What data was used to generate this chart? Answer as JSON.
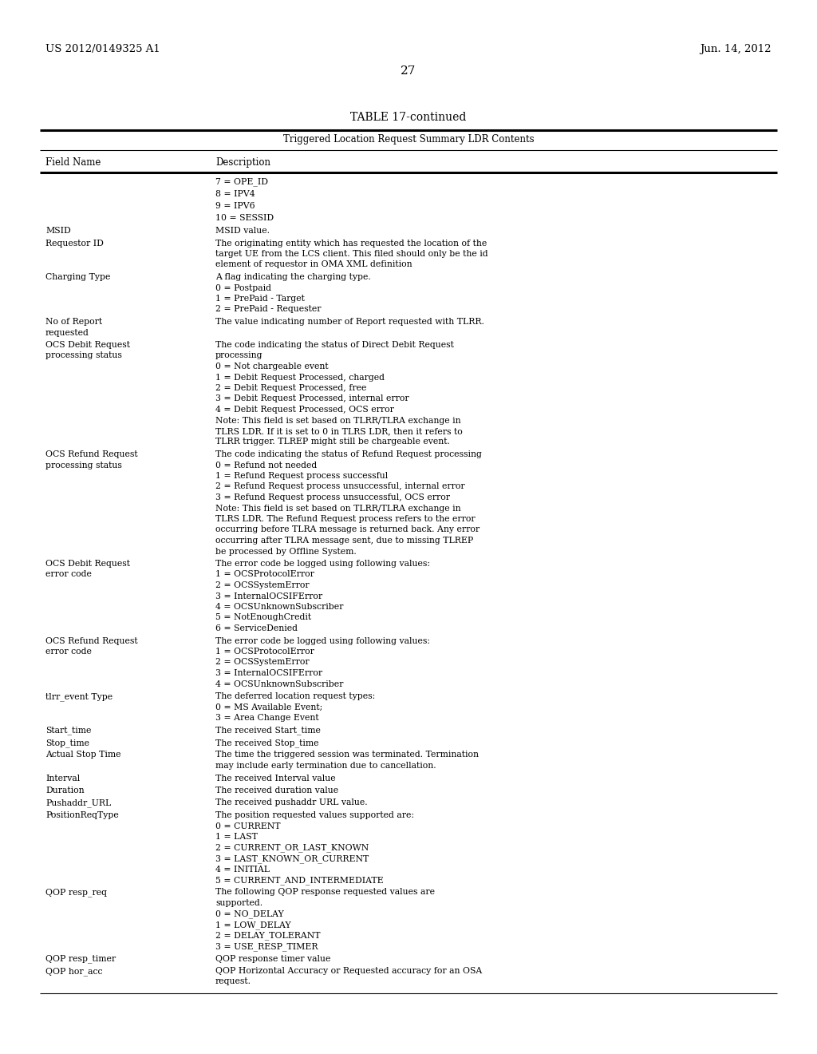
{
  "header_left": "US 2012/0149325 A1",
  "header_right": "Jun. 14, 2012",
  "page_number": "27",
  "table_title": "TABLE 17-continued",
  "table_subtitle": "Triggered Location Request Summary LDR Contents",
  "col1_header": "Field Name",
  "col2_header": "Description",
  "background_color": "#ffffff",
  "text_color": "#000000",
  "rows": [
    {
      "field": "",
      "description": "7 = OPE_ID"
    },
    {
      "field": "",
      "description": "8 = IPV4"
    },
    {
      "field": "",
      "description": "9 = IPV6"
    },
    {
      "field": "",
      "description": "10 = SESSID"
    },
    {
      "field": "MSID",
      "description": "MSID value."
    },
    {
      "field": "Requestor ID",
      "description": "The originating entity which has requested the location of the\ntarget UE from the LCS client. This filed should only be the id\nelement of requestor in OMA XML definition"
    },
    {
      "field": "Charging Type",
      "description": "A flag indicating the charging type.\n0 = Postpaid\n1 = PrePaid - Target\n2 = PrePaid - Requester"
    },
    {
      "field": "No of Report\nrequested",
      "description": "The value indicating number of Report requested with TLRR."
    },
    {
      "field": "OCS Debit Request\nprocessing status",
      "description": "The code indicating the status of Direct Debit Request\nprocessing\n0 = Not chargeable event\n1 = Debit Request Processed, charged\n2 = Debit Request Processed, free\n3 = Debit Request Processed, internal error\n4 = Debit Request Processed, OCS error\nNote: This field is set based on TLRR/TLRA exchange in\nTLRS LDR. If it is set to 0 in TLRS LDR, then it refers to\nTLRR trigger. TLREP might still be chargeable event."
    },
    {
      "field": "OCS Refund Request\nprocessing status",
      "description": "The code indicating the status of Refund Request processing\n0 = Refund not needed\n1 = Refund Request process successful\n2 = Refund Request process unsuccessful, internal error\n3 = Refund Request process unsuccessful, OCS error\nNote: This field is set based on TLRR/TLRA exchange in\nTLRS LDR. The Refund Request process refers to the error\noccurring before TLRA message is returned back. Any error\noccurring after TLRA message sent, due to missing TLREP\nbe processed by Offline System."
    },
    {
      "field": "OCS Debit Request\nerror code",
      "description": "The error code be logged using following values:\n1 = OCSProtocolError\n2 = OCSSystemError\n3 = InternalOCSIFError\n4 = OCSUnknownSubscriber\n5 = NotEnoughCredit\n6 = ServiceDenied"
    },
    {
      "field": "OCS Refund Request\nerror code",
      "description": "The error code be logged using following values:\n1 = OCSProtocolError\n2 = OCSSystemError\n3 = InternalOCSIFError\n4 = OCSUnknownSubscriber"
    },
    {
      "field": "tlrr_event Type",
      "description": "The deferred location request types:\n0 = MS Available Event;\n3 = Area Change Event"
    },
    {
      "field": "Start_time",
      "description": "The received Start_time"
    },
    {
      "field": "Stop_time",
      "description": "The received Stop_time"
    },
    {
      "field": "Actual Stop Time",
      "description": "The time the triggered session was terminated. Termination\nmay include early termination due to cancellation."
    },
    {
      "field": "Interval",
      "description": "The received Interval value"
    },
    {
      "field": "Duration",
      "description": "The received duration value"
    },
    {
      "field": "Pushaddr_URL",
      "description": "The received pushaddr URL value."
    },
    {
      "field": "PositionReqType",
      "description": "The position requested values supported are:\n0 = CURRENT\n1 = LAST\n2 = CURRENT_OR_LAST_KNOWN\n3 = LAST_KNOWN_OR_CURRENT\n4 = INITIAL\n5 = CURRENT_AND_INTERMEDIATE"
    },
    {
      "field": "QOP resp_req",
      "description": "The following QOP response requested values are\nsupported.\n0 = NO_DELAY\n1 = LOW_DELAY\n2 = DELAY_TOLERANT\n3 = USE_RESP_TIMER"
    },
    {
      "field": "QOP resp_timer",
      "description": "QOP response timer value"
    },
    {
      "field": "QOP hor_acc",
      "description": "QOP Horizontal Accuracy or Requested accuracy for an OSA\nrequest."
    }
  ]
}
